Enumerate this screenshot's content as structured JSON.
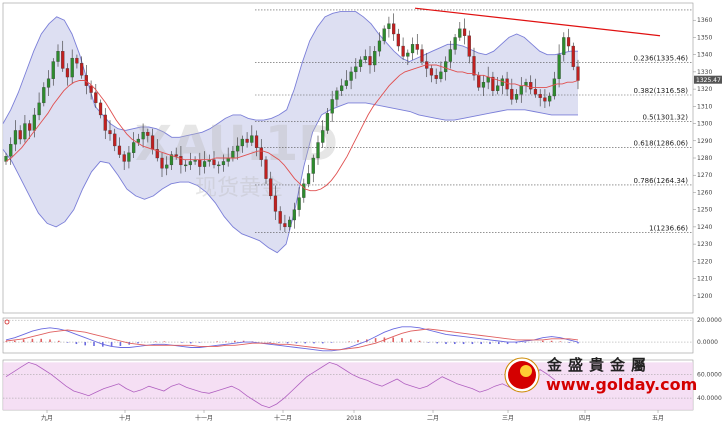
{
  "chart_data": [
    {
      "type": "candlestick",
      "title": "",
      "symbol_watermark": "XAU.1D",
      "watermark_cn": "现货黄金",
      "x_labels": [
        "九月",
        "十月",
        "十一月",
        "十二月",
        "2018",
        "二月",
        "三月",
        "四月",
        "五月"
      ],
      "ylim": [
        1190,
        1370
      ],
      "y_ticks": [
        1200,
        1210,
        1220,
        1230,
        1240,
        1250,
        1260,
        1270,
        1280,
        1290,
        1300,
        1310,
        1320,
        1330,
        1340,
        1350,
        1360
      ],
      "current_price": "1325.47",
      "series": [
        {
          "name": "close",
          "values": [
            1281,
            1288,
            1296,
            1291,
            1300,
            1296,
            1305,
            1312,
            1321,
            1326,
            1336,
            1342,
            1332,
            1327,
            1338,
            1335,
            1328,
            1322,
            1318,
            1312,
            1305,
            1296,
            1294,
            1287,
            1282,
            1278,
            1283,
            1289,
            1291,
            1295,
            1293,
            1285,
            1280,
            1274,
            1276,
            1282,
            1281,
            1276,
            1276,
            1278,
            1279,
            1275,
            1278,
            1279,
            1276,
            1276,
            1278,
            1280,
            1284,
            1287,
            1291,
            1289,
            1293,
            1286,
            1279,
            1268,
            1258,
            1249,
            1242,
            1240,
            1244,
            1250,
            1257,
            1265,
            1271,
            1280,
            1289,
            1296,
            1306,
            1314,
            1319,
            1322,
            1325,
            1330,
            1333,
            1337,
            1339,
            1334,
            1342,
            1348,
            1355,
            1358,
            1352,
            1345,
            1339,
            1341,
            1346,
            1343,
            1336,
            1332,
            1328,
            1326,
            1330,
            1336,
            1343,
            1350,
            1355,
            1351,
            1339,
            1328,
            1321,
            1324,
            1327,
            1319,
            1322,
            1326,
            1320,
            1314,
            1317,
            1322,
            1324,
            1320,
            1317,
            1315,
            1313,
            1316,
            1326,
            1340,
            1350,
            1345,
            1333,
            1325
          ]
        },
        {
          "name": "ma20",
          "values": [
            1278,
            1280,
            1283,
            1286,
            1290,
            1294,
            1298,
            1302,
            1306,
            1311,
            1315,
            1319,
            1322,
            1324,
            1325,
            1325,
            1323,
            1320,
            1316,
            1312,
            1307,
            1302,
            1298,
            1294,
            1291,
            1289,
            1287,
            1286,
            1285,
            1284,
            1283,
            1282,
            1281,
            1280,
            1279,
            1279,
            1279,
            1279,
            1279,
            1279,
            1280,
            1280,
            1280,
            1280,
            1280,
            1281,
            1282,
            1283,
            1284,
            1284,
            1283,
            1281,
            1279,
            1276,
            1272,
            1268,
            1265,
            1262,
            1261,
            1261,
            1262,
            1264,
            1267,
            1271,
            1276,
            1281,
            1287,
            1293,
            1299,
            1305,
            1310,
            1314,
            1318,
            1322,
            1325,
            1328,
            1330,
            1331,
            1332,
            1333,
            1334,
            1334,
            1334,
            1333,
            1332,
            1331,
            1330,
            1330,
            1329,
            1329,
            1328,
            1328,
            1327,
            1326,
            1325,
            1324,
            1323,
            1323,
            1322,
            1322,
            1321,
            1321,
            1321,
            1321,
            1322,
            1323,
            1323,
            1324,
            1324,
            1325
          ]
        },
        {
          "name": "bb_upper",
          "values": [
            1300,
            1308,
            1318,
            1330,
            1342,
            1352,
            1358,
            1362,
            1360,
            1352,
            1340,
            1325,
            1310,
            1305,
            1300,
            1297,
            1296,
            1297,
            1298,
            1298,
            1297,
            1295,
            1292,
            1292,
            1293,
            1294,
            1295,
            1297,
            1300,
            1303,
            1305,
            1305,
            1303,
            1302,
            1302,
            1303,
            1305,
            1308,
            1320,
            1335,
            1348,
            1356,
            1362,
            1364,
            1365,
            1365,
            1365,
            1362,
            1358,
            1352,
            1347,
            1342,
            1338,
            1336,
            1338,
            1340,
            1342,
            1344,
            1346,
            1346,
            1345,
            1343,
            1341,
            1340,
            1342,
            1346,
            1350,
            1352,
            1350,
            1346,
            1342,
            1340,
            1340,
            1341,
            1342,
            1342
          ]
        },
        {
          "name": "bb_lower",
          "values": [
            1285,
            1278,
            1268,
            1258,
            1248,
            1242,
            1240,
            1243,
            1250,
            1262,
            1272,
            1278,
            1277,
            1270,
            1262,
            1258,
            1256,
            1258,
            1262,
            1265,
            1266,
            1266,
            1264,
            1260,
            1254,
            1246,
            1240,
            1236,
            1234,
            1232,
            1228,
            1225,
            1230,
            1250,
            1275,
            1295,
            1305,
            1308,
            1310,
            1312,
            1312,
            1312,
            1311,
            1310,
            1309,
            1308,
            1307,
            1305,
            1304,
            1303,
            1302,
            1302,
            1303,
            1304,
            1305,
            1306,
            1307,
            1308,
            1308,
            1308,
            1307,
            1306,
            1305,
            1305,
            1305,
            1305
          ]
        }
      ],
      "fib_levels": [
        {
          "label": "0.236(1335.46)",
          "value": 1335.46
        },
        {
          "label": "0.382(1316.58)",
          "value": 1316.58
        },
        {
          "label": "0.5(1301.32)",
          "value": 1301.32
        },
        {
          "label": "0.618(1286.06)",
          "value": 1286.06
        },
        {
          "label": "0.786(1264.34)",
          "value": 1264.34
        },
        {
          "label": "1(1236.66)",
          "value": 1236.66
        }
      ],
      "fib_top_value": 1366,
      "trendline": {
        "from": [
          1367,
          "start"
        ],
        "to": [
          1351,
          "end"
        ]
      }
    },
    {
      "type": "macd",
      "ylim": [
        -10,
        22
      ],
      "y_ticks": [
        {
          "v": 20,
          "label": "20.0000"
        },
        {
          "v": 0,
          "label": "0.0000"
        }
      ],
      "series": [
        {
          "name": "macd",
          "values": [
            2,
            4,
            7,
            10,
            12,
            13,
            12,
            10,
            7,
            4,
            1,
            -2,
            -4,
            -5,
            -5,
            -4,
            -3,
            -2,
            -2,
            -3,
            -4,
            -5,
            -5,
            -4,
            -3,
            -2,
            -1,
            0,
            0,
            -1,
            -2,
            -3,
            -4,
            -5,
            -6,
            -7,
            -8,
            -8,
            -7,
            -5,
            -2,
            1,
            5,
            9,
            12,
            14,
            14,
            13,
            11,
            9,
            7,
            6,
            5,
            4,
            3,
            2,
            1,
            0,
            0,
            1,
            2,
            4,
            5,
            4,
            2,
            0
          ]
        },
        {
          "name": "signal",
          "values": [
            1,
            2,
            3,
            5,
            7,
            9,
            10,
            11,
            10,
            9,
            7,
            5,
            3,
            1,
            -1,
            -2,
            -3,
            -3,
            -3,
            -3,
            -3,
            -3,
            -4,
            -4,
            -4,
            -3,
            -3,
            -2,
            -1,
            -1,
            -1,
            -2,
            -2,
            -3,
            -4,
            -5,
            -6,
            -7,
            -7,
            -6,
            -5,
            -3,
            -1,
            2,
            5,
            8,
            10,
            11,
            12,
            11,
            10,
            9,
            8,
            7,
            6,
            5,
            4,
            3,
            2,
            2,
            2,
            2,
            3,
            3,
            3,
            2
          ]
        }
      ]
    },
    {
      "type": "line",
      "name": "rsi",
      "ylim": [
        30,
        72
      ],
      "y_ticks": [
        {
          "v": 60,
          "label": "60.0000"
        },
        {
          "v": 40,
          "label": "40.0000"
        }
      ],
      "series": [
        {
          "name": "rsi",
          "values": [
            58,
            62,
            66,
            70,
            68,
            64,
            60,
            55,
            50,
            46,
            44,
            42,
            45,
            48,
            50,
            52,
            48,
            45,
            47,
            50,
            48,
            46,
            50,
            52,
            49,
            47,
            45,
            44,
            46,
            48,
            50,
            47,
            42,
            38,
            34,
            32,
            35,
            40,
            46,
            52,
            58,
            62,
            66,
            70,
            68,
            64,
            60,
            57,
            55,
            52,
            50,
            53,
            56,
            52,
            50,
            48,
            50,
            54,
            58,
            55,
            52,
            50,
            48,
            45,
            47,
            50,
            52,
            49,
            47,
            52,
            58,
            64,
            60,
            55
          ]
        }
      ]
    }
  ],
  "branding": {
    "company_cn": "金盛貴金屬",
    "website": "www.golday.com"
  },
  "colors": {
    "bull": "#2e8b2e",
    "bear": "#c02020",
    "band_fill": "#d7d9f0",
    "band_line": "#7b7fd8",
    "ma_line": "#e05050",
    "trendline": "#e01010",
    "macd_line": "#6a6ae0",
    "signal_line": "#e06060",
    "rsi_fill": "#f2d4f0",
    "rsi_line": "#b060c0",
    "brand_red": "#d40000"
  }
}
